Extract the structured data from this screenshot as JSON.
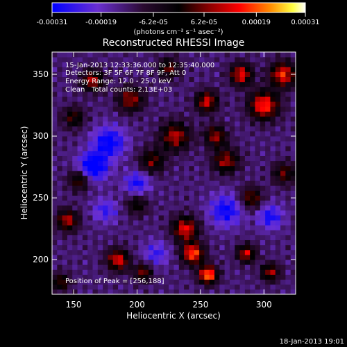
{
  "chart_data": {
    "type": "heatmap",
    "title": "Reconstructed RHESSI Image",
    "xlabel": "Heliocentric X (arcsec)",
    "ylabel": "Heliocentric Y (arcsec)",
    "xlim": [
      133,
      325
    ],
    "ylim": [
      172,
      368
    ],
    "x_ticks": [
      150,
      200,
      250,
      300
    ],
    "y_ticks": [
      200,
      250,
      300,
      350
    ],
    "pixel_size_arcsec": 4,
    "colorbar": {
      "label": "(photons cm⁻² s⁻¹ asec⁻²)",
      "range": [
        -0.00031,
        0.00031
      ],
      "tick_labels": [
        "-0.00031",
        "-0.00019",
        "-6.2e-05",
        "6.2e-05",
        "0.00019",
        "0.00031"
      ],
      "colors": [
        "#0000ff",
        "#6a2fd1",
        "#2a0a30",
        "#000000",
        "#8a0000",
        "#ff0000",
        "#ff8a00",
        "#ffff40",
        "#ffffff"
      ]
    },
    "annotations": {
      "time_range": "15-Jan-2013 12:33:36.000 to 12:35:40.000",
      "detectors": "Detectors: 3F 5F 6F 7F 8F 9F, Att 0",
      "energy": "Energy Range: 12.0 - 25.0 keV",
      "algorithm": "Clean",
      "total_counts": "Total counts: 2.13E+03",
      "peak": "Position of Peak = [256,188]"
    },
    "peak_position": [
      256,
      188
    ],
    "peak_value": 0.00031,
    "sources": [
      {
        "x": 256,
        "y": 188,
        "peak": 1.0,
        "width": 5
      },
      {
        "x": 244,
        "y": 205,
        "peak": 0.9,
        "width": 6
      },
      {
        "x": 238,
        "y": 225,
        "peak": 0.75,
        "width": 7
      },
      {
        "x": 286,
        "y": 205,
        "peak": 0.7,
        "width": 5
      },
      {
        "x": 305,
        "y": 190,
        "peak": 0.6,
        "width": 5
      },
      {
        "x": 185,
        "y": 200,
        "peak": 0.75,
        "width": 6
      },
      {
        "x": 205,
        "y": 190,
        "peak": 0.55,
        "width": 5
      },
      {
        "x": 145,
        "y": 232,
        "peak": 0.65,
        "width": 6
      },
      {
        "x": 155,
        "y": 265,
        "peak": 0.55,
        "width": 6
      },
      {
        "x": 140,
        "y": 182,
        "peak": 0.5,
        "width": 5
      },
      {
        "x": 230,
        "y": 300,
        "peak": 0.65,
        "width": 8
      },
      {
        "x": 212,
        "y": 280,
        "peak": 0.5,
        "width": 7
      },
      {
        "x": 270,
        "y": 280,
        "peak": 0.6,
        "width": 7
      },
      {
        "x": 290,
        "y": 250,
        "peak": 0.55,
        "width": 6
      },
      {
        "x": 300,
        "y": 325,
        "peak": 0.85,
        "width": 8
      },
      {
        "x": 315,
        "y": 350,
        "peak": 0.8,
        "width": 7
      },
      {
        "x": 282,
        "y": 350,
        "peak": 0.75,
        "width": 6
      },
      {
        "x": 255,
        "y": 328,
        "peak": 0.7,
        "width": 6
      },
      {
        "x": 262,
        "y": 300,
        "peak": 0.6,
        "width": 6
      },
      {
        "x": 195,
        "y": 330,
        "peak": 0.6,
        "width": 7
      },
      {
        "x": 165,
        "y": 345,
        "peak": 0.65,
        "width": 6
      },
      {
        "x": 150,
        "y": 315,
        "peak": 0.45,
        "width": 6
      },
      {
        "x": 225,
        "y": 355,
        "peak": 0.5,
        "width": 6
      },
      {
        "x": 316,
        "y": 270,
        "peak": 0.5,
        "width": 6
      },
      {
        "x": 200,
        "y": 245,
        "peak": 0.4,
        "width": 6
      },
      {
        "x": 178,
        "y": 295,
        "peak": -0.55,
        "width": 9
      },
      {
        "x": 165,
        "y": 275,
        "peak": -0.7,
        "width": 8
      },
      {
        "x": 200,
        "y": 262,
        "peak": -0.45,
        "width": 7
      },
      {
        "x": 270,
        "y": 240,
        "peak": -0.5,
        "width": 9
      },
      {
        "x": 305,
        "y": 235,
        "peak": -0.45,
        "width": 7
      },
      {
        "x": 215,
        "y": 205,
        "peak": -0.35,
        "width": 7
      },
      {
        "x": 175,
        "y": 240,
        "peak": -0.35,
        "width": 7
      }
    ]
  },
  "footer": {
    "timestamp": "18-Jan-2013 19:01"
  }
}
